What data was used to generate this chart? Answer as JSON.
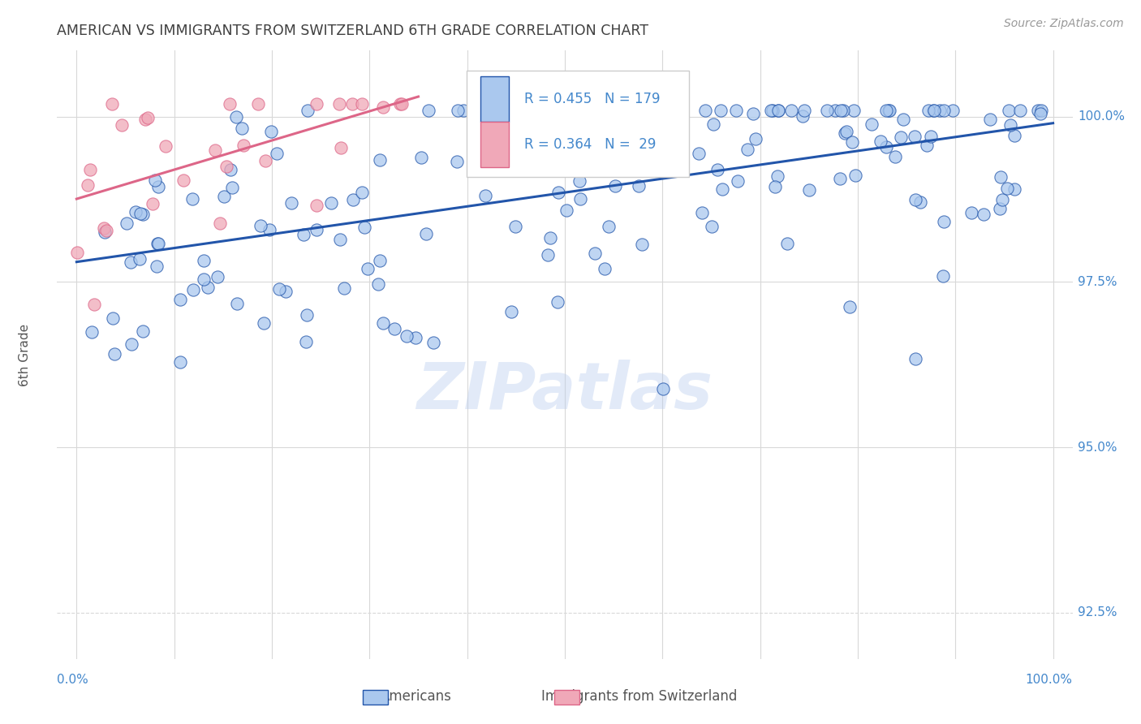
{
  "title": "AMERICAN VS IMMIGRANTS FROM SWITZERLAND 6TH GRADE CORRELATION CHART",
  "source": "Source: ZipAtlas.com",
  "ylabel": "6th Grade",
  "watermark": "ZIPatlas",
  "yticks": [
    92.5,
    95.0,
    97.5,
    100.0
  ],
  "xlim": [
    -0.02,
    1.02
  ],
  "ylim": [
    91.8,
    101.0
  ],
  "background_color": "#ffffff",
  "grid_color": "#d8d8d8",
  "title_color": "#404040",
  "tick_color": "#4488cc",
  "americans_scatter_color": "#aac8ee",
  "swiss_scatter_color": "#f0a8b8",
  "americans_line_color": "#2255aa",
  "swiss_line_color": "#dd6688",
  "americans_R": 0.455,
  "americans_N": 179,
  "swiss_R": 0.364,
  "swiss_N": 29,
  "seed": 17
}
